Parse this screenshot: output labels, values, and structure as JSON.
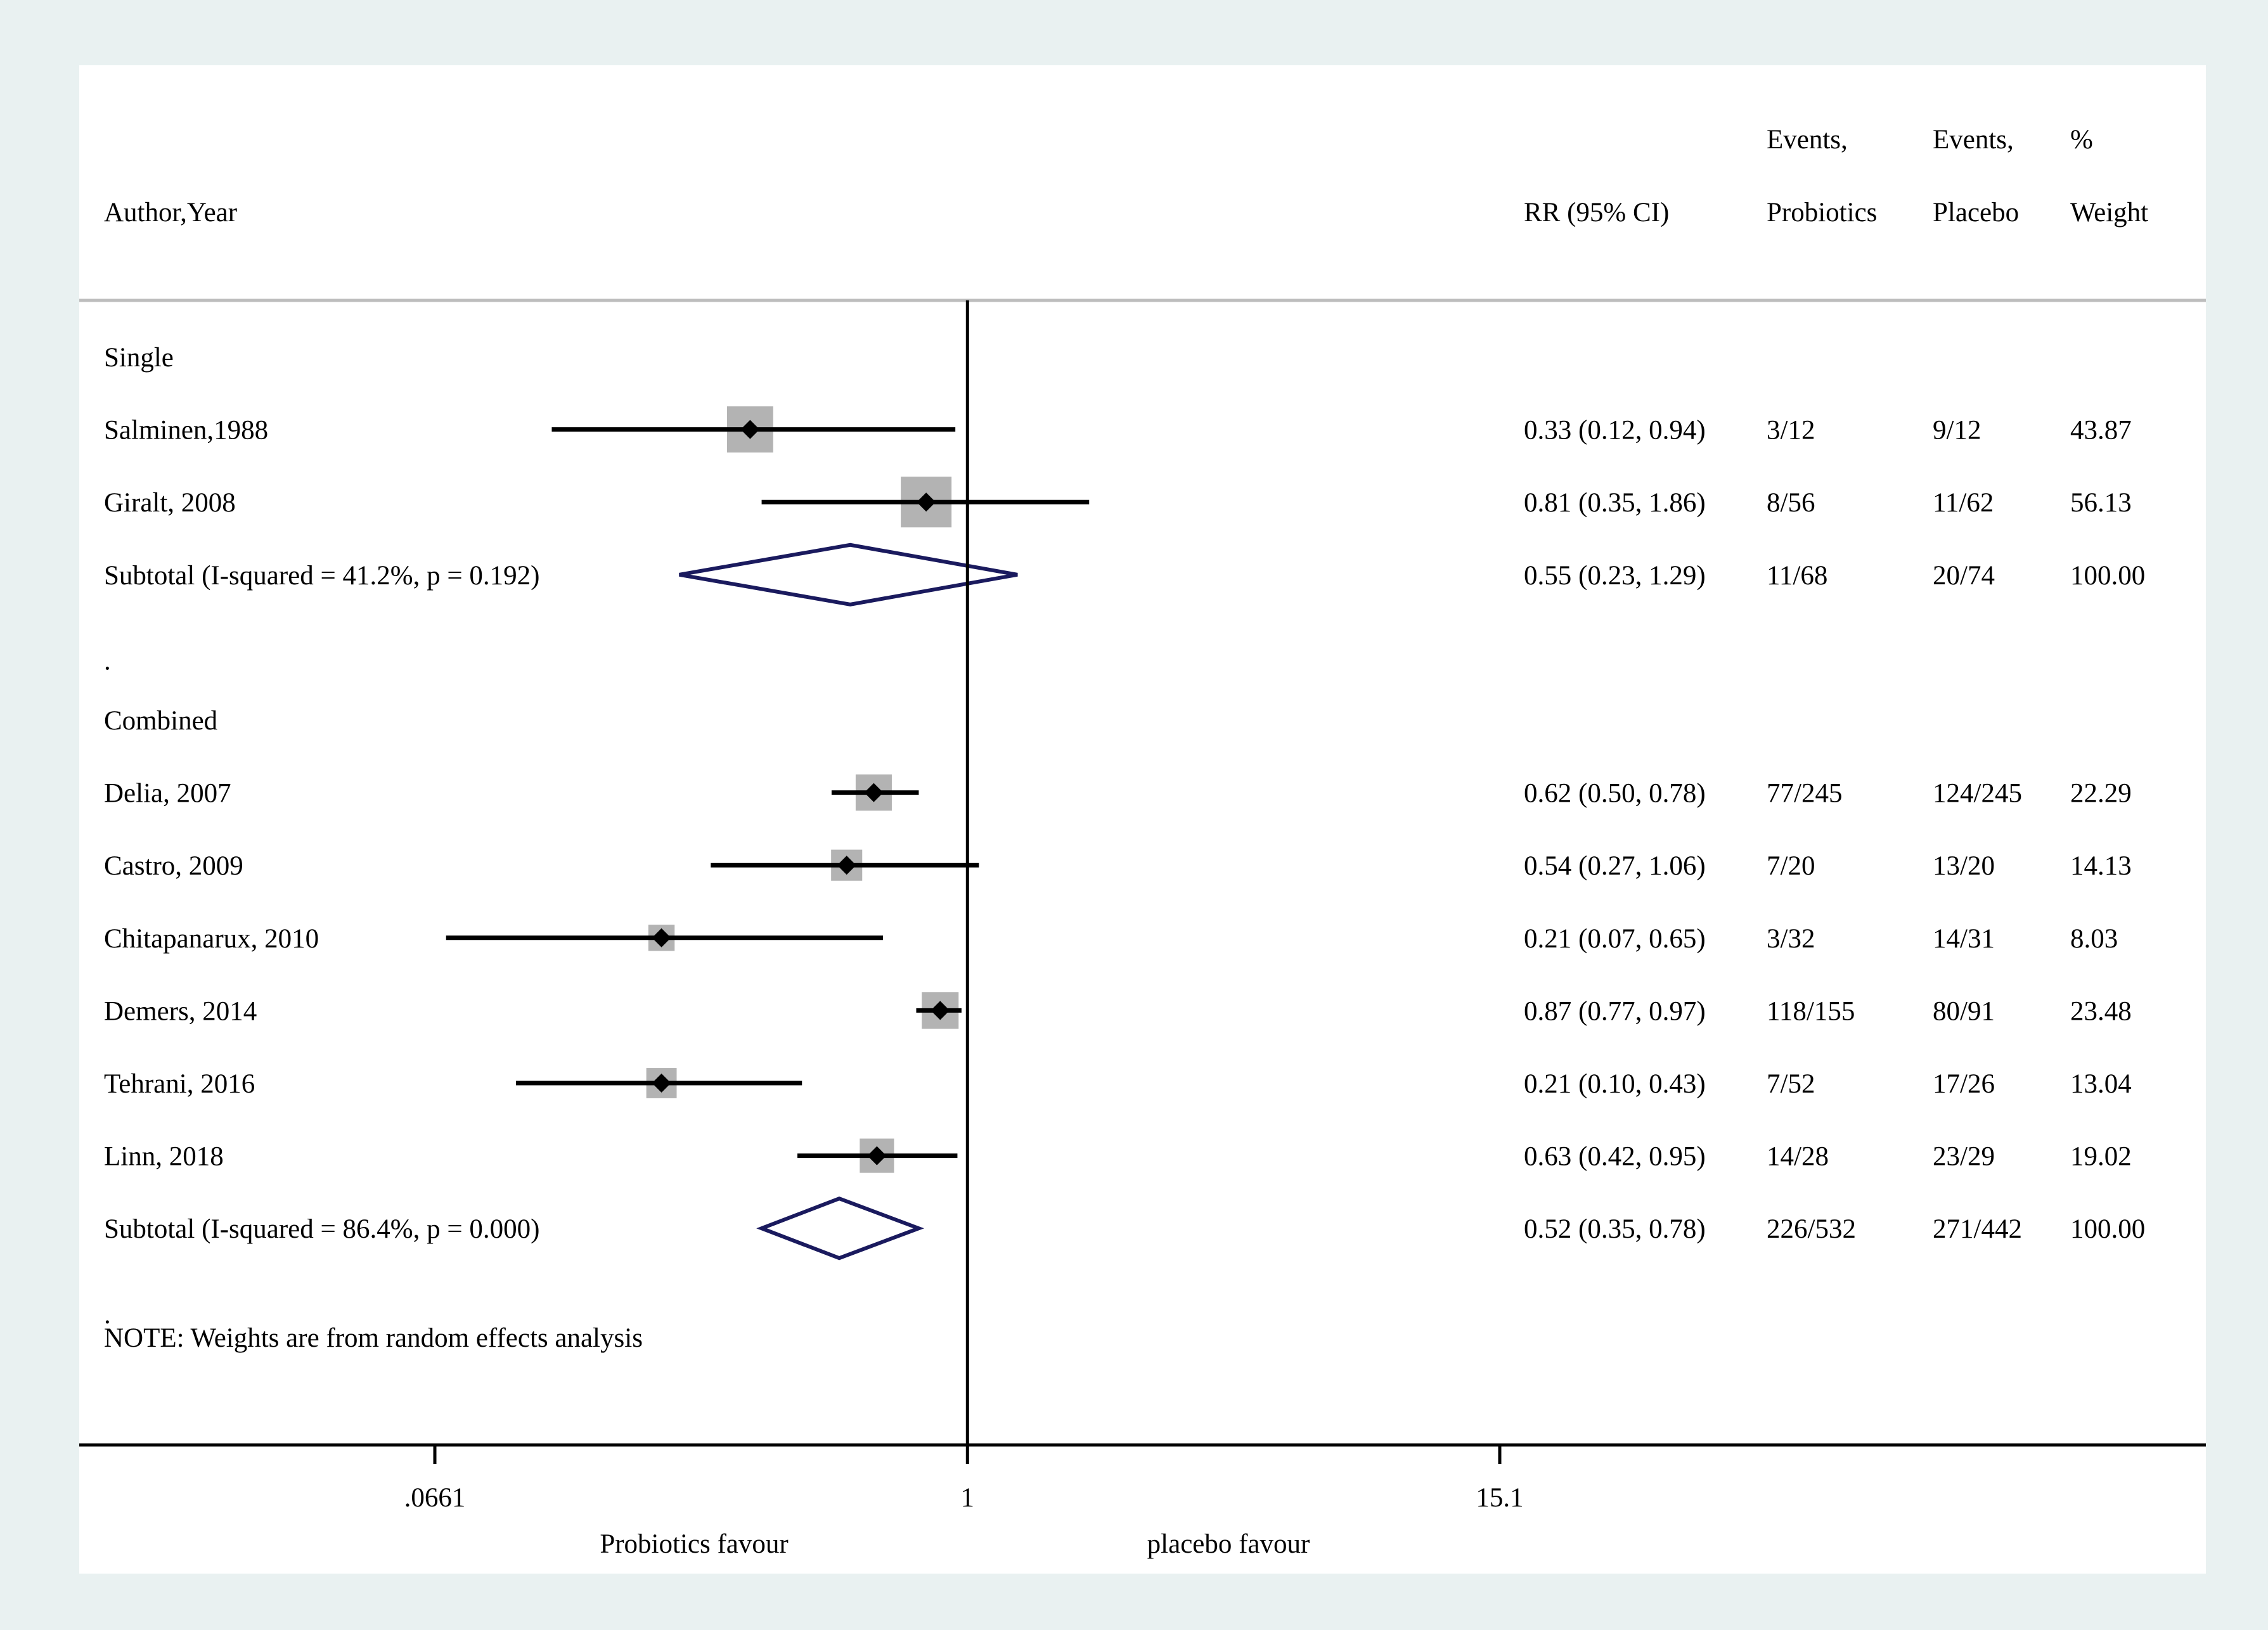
{
  "chart_data": {
    "type": "forest",
    "scale": "log",
    "x_ticks": [
      ".0661",
      "1",
      "15.1"
    ],
    "x_tick_values": [
      0.0661,
      1,
      15.1
    ],
    "xlim": [
      0.0661,
      15.1
    ],
    "null_value": 1,
    "left_label": "Probiotics favour",
    "right_label": "placebo favour",
    "headers": {
      "study": "Author,Year",
      "rr": "RR (95% CI)",
      "ev_prob_1": "Events,",
      "ev_prob_2": "Probiotics",
      "ev_plac_1": "Events,",
      "ev_plac_2": "Placebo",
      "weight_1": "%",
      "weight_2": "Weight"
    },
    "rows": [
      {
        "kind": "group",
        "label": "Single"
      },
      {
        "kind": "study",
        "label": "Salminen,1988",
        "rr": 0.33,
        "lo": 0.12,
        "hi": 0.94,
        "ci_text": "0.33 (0.12, 0.94)",
        "ev_prob": "3/12",
        "ev_plac": "9/12",
        "weight": "43.87",
        "w": 43.87
      },
      {
        "kind": "study",
        "label": "Giralt, 2008",
        "rr": 0.81,
        "lo": 0.35,
        "hi": 1.86,
        "ci_text": "0.81 (0.35, 1.86)",
        "ev_prob": "8/56",
        "ev_plac": "11/62",
        "weight": "56.13",
        "w": 56.13
      },
      {
        "kind": "subtotal",
        "label": "Subtotal  (I-squared = 41.2%, p = 0.192)",
        "rr": 0.55,
        "lo": 0.23,
        "hi": 1.29,
        "ci_text": "0.55 (0.23, 1.29)",
        "ev_prob": "11/68",
        "ev_plac": "20/74",
        "weight": "100.00"
      },
      {
        "kind": "spacer",
        "label": "."
      },
      {
        "kind": "group",
        "label": "Combined"
      },
      {
        "kind": "study",
        "label": "Delia, 2007",
        "rr": 0.62,
        "lo": 0.5,
        "hi": 0.78,
        "ci_text": "0.62 (0.50, 0.78)",
        "ev_prob": "77/245",
        "ev_plac": "124/245",
        "weight": "22.29",
        "w": 22.29
      },
      {
        "kind": "study",
        "label": "Castro, 2009",
        "rr": 0.54,
        "lo": 0.27,
        "hi": 1.06,
        "ci_text": "0.54 (0.27, 1.06)",
        "ev_prob": "7/20",
        "ev_plac": "13/20",
        "weight": "14.13",
        "w": 14.13
      },
      {
        "kind": "study",
        "label": "Chitapanarux, 2010",
        "rr": 0.21,
        "lo": 0.07,
        "hi": 0.65,
        "ci_text": "0.21 (0.07, 0.65)",
        "ev_prob": "3/32",
        "ev_plac": "14/31",
        "weight": "8.03",
        "w": 8.03
      },
      {
        "kind": "study",
        "label": "Demers, 2014",
        "rr": 0.87,
        "lo": 0.77,
        "hi": 0.97,
        "ci_text": "0.87 (0.77, 0.97)",
        "ev_prob": "118/155",
        "ev_plac": "80/91",
        "weight": "23.48",
        "w": 23.48
      },
      {
        "kind": "study",
        "label": "Tehrani, 2016",
        "rr": 0.21,
        "lo": 0.1,
        "hi": 0.43,
        "ci_text": "0.21 (0.10, 0.43)",
        "ev_prob": "7/52",
        "ev_plac": "17/26",
        "weight": "13.04",
        "w": 13.04
      },
      {
        "kind": "study",
        "label": "Linn, 2018",
        "rr": 0.63,
        "lo": 0.42,
        "hi": 0.95,
        "ci_text": "0.63 (0.42, 0.95)",
        "ev_prob": "14/28",
        "ev_plac": "23/29",
        "weight": "19.02",
        "w": 19.02
      },
      {
        "kind": "subtotal",
        "label": "Subtotal  (I-squared = 86.4%, p = 0.000)",
        "rr": 0.52,
        "lo": 0.35,
        "hi": 0.78,
        "ci_text": "0.52 (0.35, 0.78)",
        "ev_prob": "226/532",
        "ev_plac": "271/442",
        "weight": "100.00"
      },
      {
        "kind": "spacer",
        "label": "."
      }
    ],
    "note": "NOTE: Weights are from random effects analysis",
    "colors": {
      "background": "#e9f1f1",
      "panel": "#ffffff",
      "box": "#b3b3b3",
      "diamond": "#1a1a5e",
      "line": "#000000"
    }
  }
}
